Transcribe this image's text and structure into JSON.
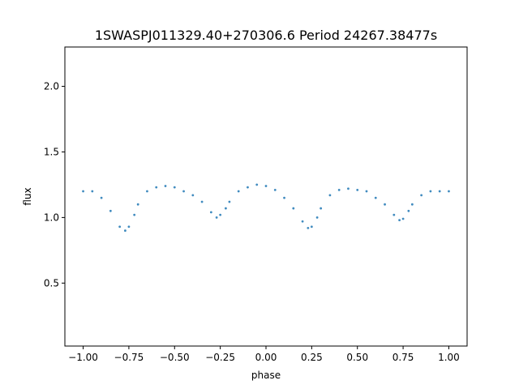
{
  "chart_data": {
    "type": "scatter",
    "title": "1SWASPJ011329.40+270306.6 Period 24267.38477s",
    "xlabel": "phase",
    "ylabel": "flux",
    "xlim": [
      -1.1,
      1.1
    ],
    "ylim": [
      0.02,
      2.3
    ],
    "x_ticks": [
      -1.0,
      -0.75,
      -0.5,
      -0.25,
      0.0,
      0.25,
      0.5,
      0.75,
      1.0
    ],
    "x_tick_labels": [
      "−1.00",
      "−0.75",
      "−0.50",
      "−0.25",
      "0.00",
      "0.25",
      "0.50",
      "0.75",
      "1.00"
    ],
    "y_ticks": [
      0.5,
      1.0,
      1.5,
      2.0
    ],
    "y_tick_labels": [
      "0.5",
      "1.0",
      "1.5",
      "2.0"
    ],
    "grid": false,
    "marker_color": "#1f77b4",
    "series": [
      {
        "x": [
          -1.0,
          -0.95,
          -0.9,
          -0.85,
          -0.8,
          -0.77,
          -0.75,
          -0.72,
          -0.7,
          -0.65,
          -0.6,
          -0.55,
          -0.5,
          -0.45,
          -0.4,
          -0.35,
          -0.3,
          -0.27,
          -0.25,
          -0.22,
          -0.2,
          -0.15,
          -0.1,
          -0.05,
          0.0,
          0.05,
          0.1,
          0.15,
          0.2,
          0.23,
          0.25,
          0.28,
          0.3,
          0.35,
          0.4,
          0.45,
          0.5,
          0.55,
          0.6,
          0.65,
          0.7,
          0.73,
          0.75,
          0.78,
          0.8,
          0.85,
          0.9,
          0.95,
          1.0
        ],
        "y": [
          1.2,
          1.2,
          1.15,
          1.05,
          0.93,
          0.9,
          0.93,
          1.02,
          1.1,
          1.2,
          1.23,
          1.24,
          1.23,
          1.2,
          1.17,
          1.12,
          1.04,
          1.0,
          1.02,
          1.07,
          1.12,
          1.2,
          1.23,
          1.25,
          1.24,
          1.21,
          1.15,
          1.07,
          0.97,
          0.92,
          0.93,
          1.0,
          1.07,
          1.17,
          1.21,
          1.22,
          1.21,
          1.2,
          1.15,
          1.1,
          1.02,
          0.98,
          0.99,
          1.05,
          1.1,
          1.17,
          1.2,
          1.2,
          1.2
        ]
      }
    ]
  }
}
